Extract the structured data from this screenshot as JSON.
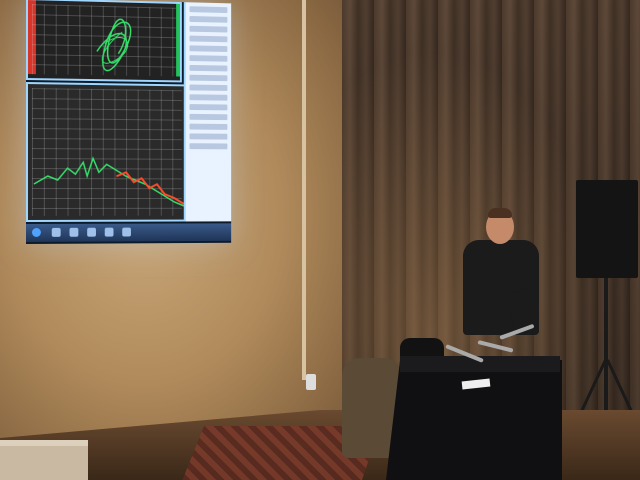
{
  "scene": {
    "kind": "photo",
    "colors": {
      "wall": "#b08a5b",
      "curtain": "#5a4434",
      "projection_frame": "#9fd6ff",
      "trace_green": "#36e06a",
      "trace_red": "#ff4a2a"
    }
  }
}
